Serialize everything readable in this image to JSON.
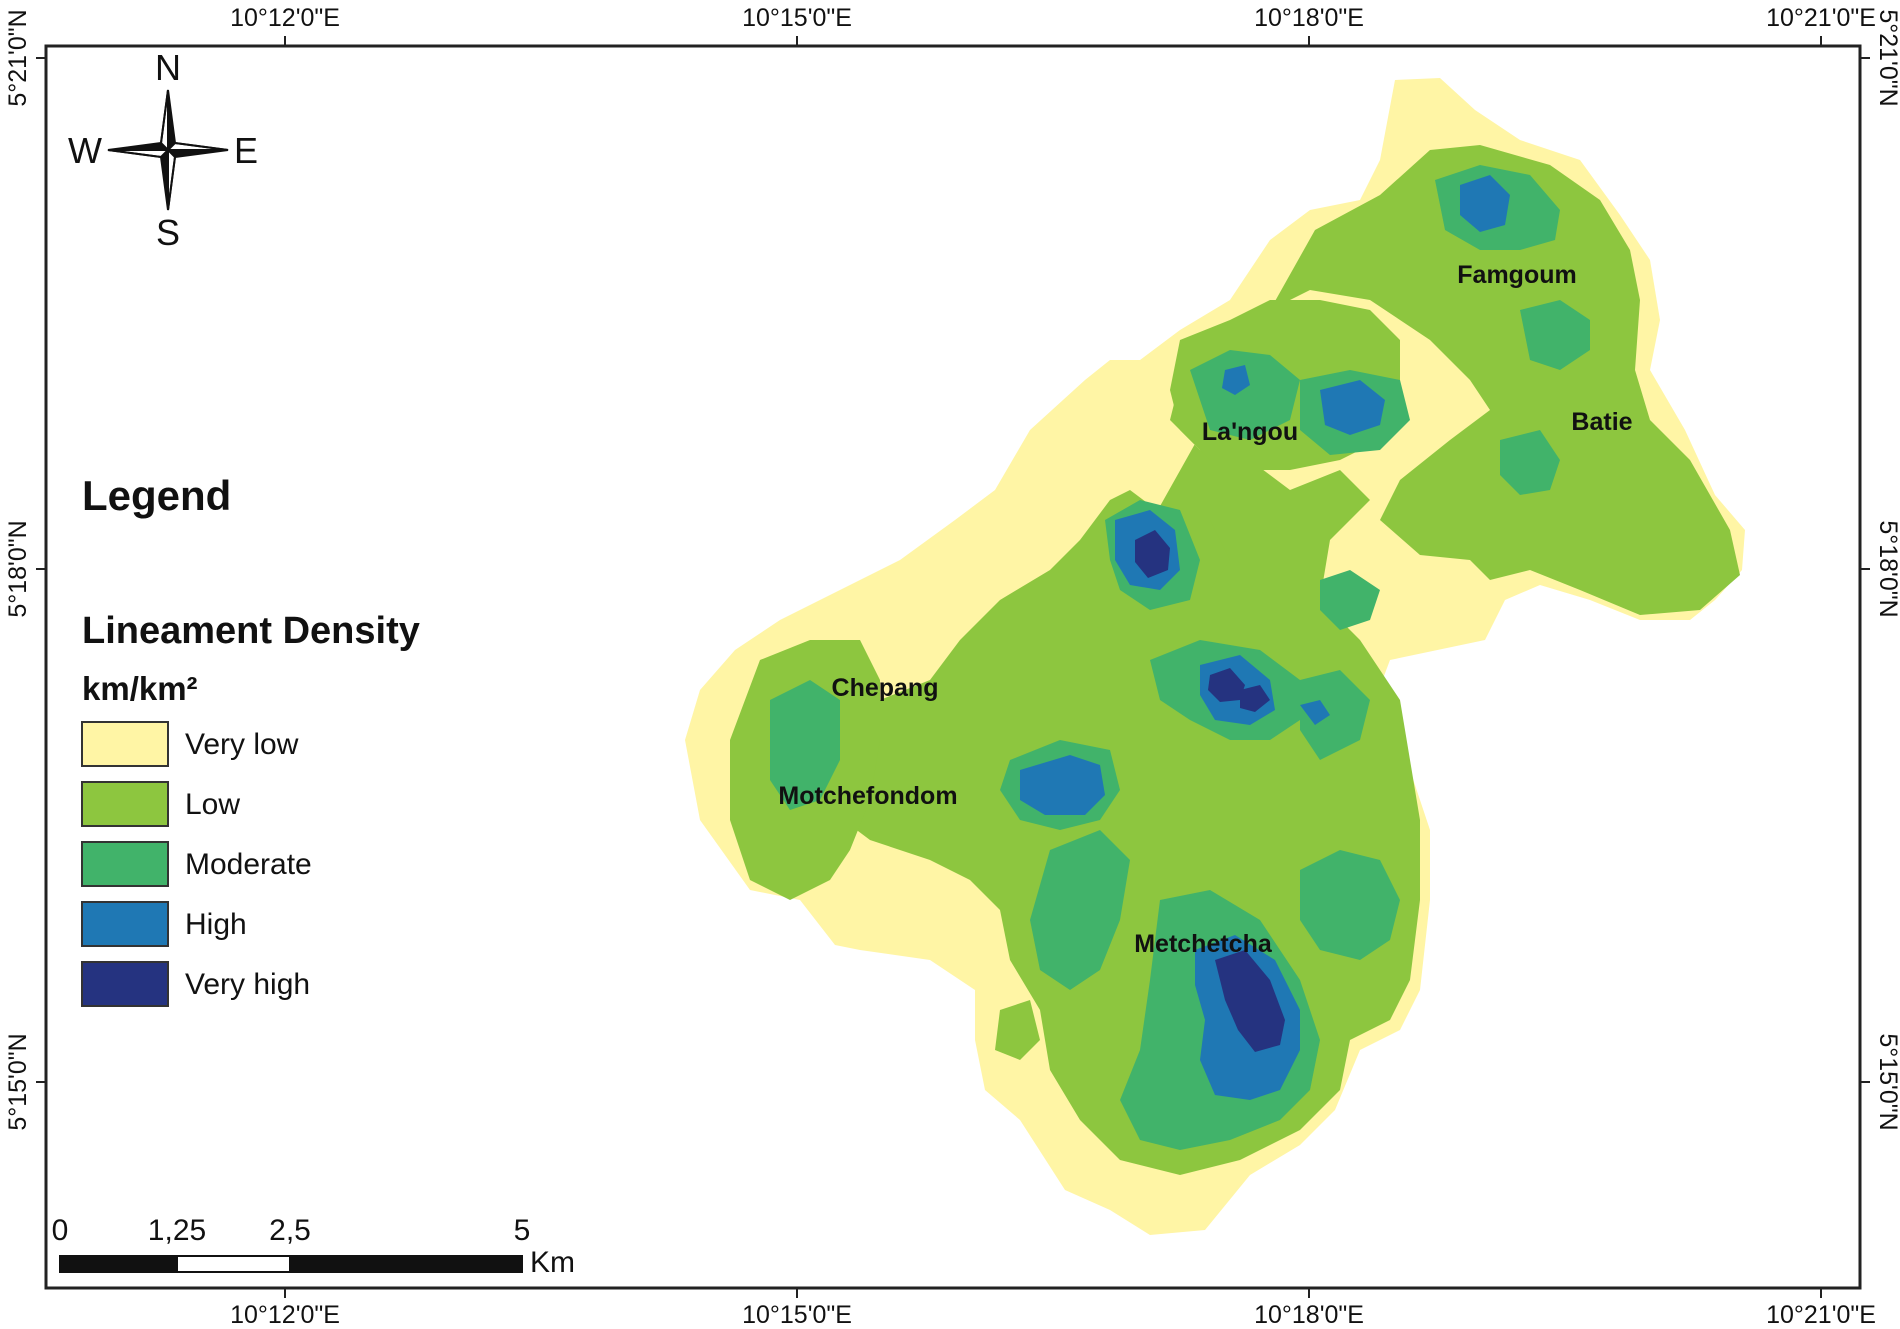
{
  "map": {
    "top_ticks": [
      "10°12'0\"E",
      "10°15'0\"E",
      "10°18'0\"E",
      "10°21'0\"E"
    ],
    "bottom_ticks": [
      "10°12'0\"E",
      "10°15'0\"E",
      "10°18'0\"E",
      "10°21'0\"E"
    ],
    "left_ticks": [
      "5°21'0\"N",
      "5°18'0\"N",
      "5°15'0\"N"
    ],
    "right_ticks": [
      "5°21'0\"N",
      "5°18'0\"N",
      "5°15'0\"N"
    ],
    "places": [
      "Famgoum",
      "La'ngou",
      "Batie",
      "Chepang",
      "Motchefondom",
      "Metchetcha"
    ],
    "compass": {
      "n": "N",
      "s": "S",
      "e": "E",
      "w": "W"
    },
    "scale_bar": {
      "labels": [
        "0",
        "1,25",
        "2,5",
        "5"
      ],
      "unit": "Km"
    }
  },
  "legend": {
    "title": "Legend",
    "subtitle": "Lineament Density",
    "unit": "km/km²",
    "items": [
      {
        "label": "Very low",
        "color": "#fff5a5"
      },
      {
        "label": "Low",
        "color": "#8dc63f"
      },
      {
        "label": "Moderate",
        "color": "#41b36a"
      },
      {
        "label": "High",
        "color": "#1f78b4"
      },
      {
        "label": "Very high",
        "color": "#253380"
      }
    ]
  }
}
